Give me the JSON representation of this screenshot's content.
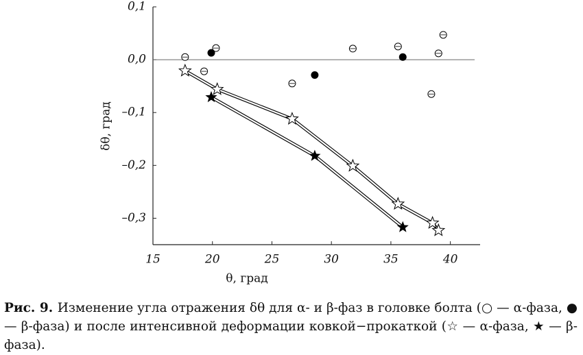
{
  "chart_data": {
    "type": "scatter",
    "xlabel": "θ, град",
    "ylabel": "δθ, град",
    "xlim": [
      15,
      42.5
    ],
    "ylim": [
      -0.35,
      0.1
    ],
    "xticks": [
      15,
      20,
      25,
      30,
      35,
      40
    ],
    "yticks": [
      {
        "value": 0.1,
        "label": "0,1"
      },
      {
        "value": 0,
        "label": "0,0"
      },
      {
        "value": -0.1,
        "label": "–0,1"
      },
      {
        "value": -0.2,
        "label": "–0,2"
      },
      {
        "value": -0.3,
        "label": "–0,3"
      }
    ],
    "hline": 0,
    "series": [
      {
        "marker": "open-circle",
        "color": "#000000",
        "line": false,
        "x": [
          17.7,
          19.3,
          20.3,
          26.7,
          31.8,
          35.6,
          38.4,
          39.0,
          39.4
        ],
        "values": [
          0.005,
          -0.022,
          0.022,
          -0.045,
          0.021,
          0.025,
          -0.065,
          0.012,
          0.047
        ]
      },
      {
        "marker": "filled-circle",
        "color": "#000000",
        "line": false,
        "x": [
          19.9,
          28.6,
          36.0
        ],
        "values": [
          0.013,
          -0.029,
          0.005
        ]
      },
      {
        "marker": "open-star",
        "color": "#000000",
        "line": true,
        "x": [
          17.7,
          20.4,
          26.7,
          31.8,
          35.6,
          38.5,
          39.0
        ],
        "values": [
          -0.021,
          -0.056,
          -0.112,
          -0.201,
          -0.273,
          -0.309,
          -0.323
        ]
      },
      {
        "marker": "filled-star",
        "color": "#000000",
        "line": true,
        "x": [
          19.9,
          28.6,
          36.0
        ],
        "values": [
          -0.071,
          -0.182,
          -0.317
        ]
      }
    ]
  },
  "caption_label": "Рис. 9.",
  "caption": "Изменение угла отражения δθ для α- и β-фаз в головке болта (○ — α-фаза, ● — β-фаза) и после интенсивной деформации ковкой−прокаткой (☆ — α-фаза, ★ — β-фаза)."
}
